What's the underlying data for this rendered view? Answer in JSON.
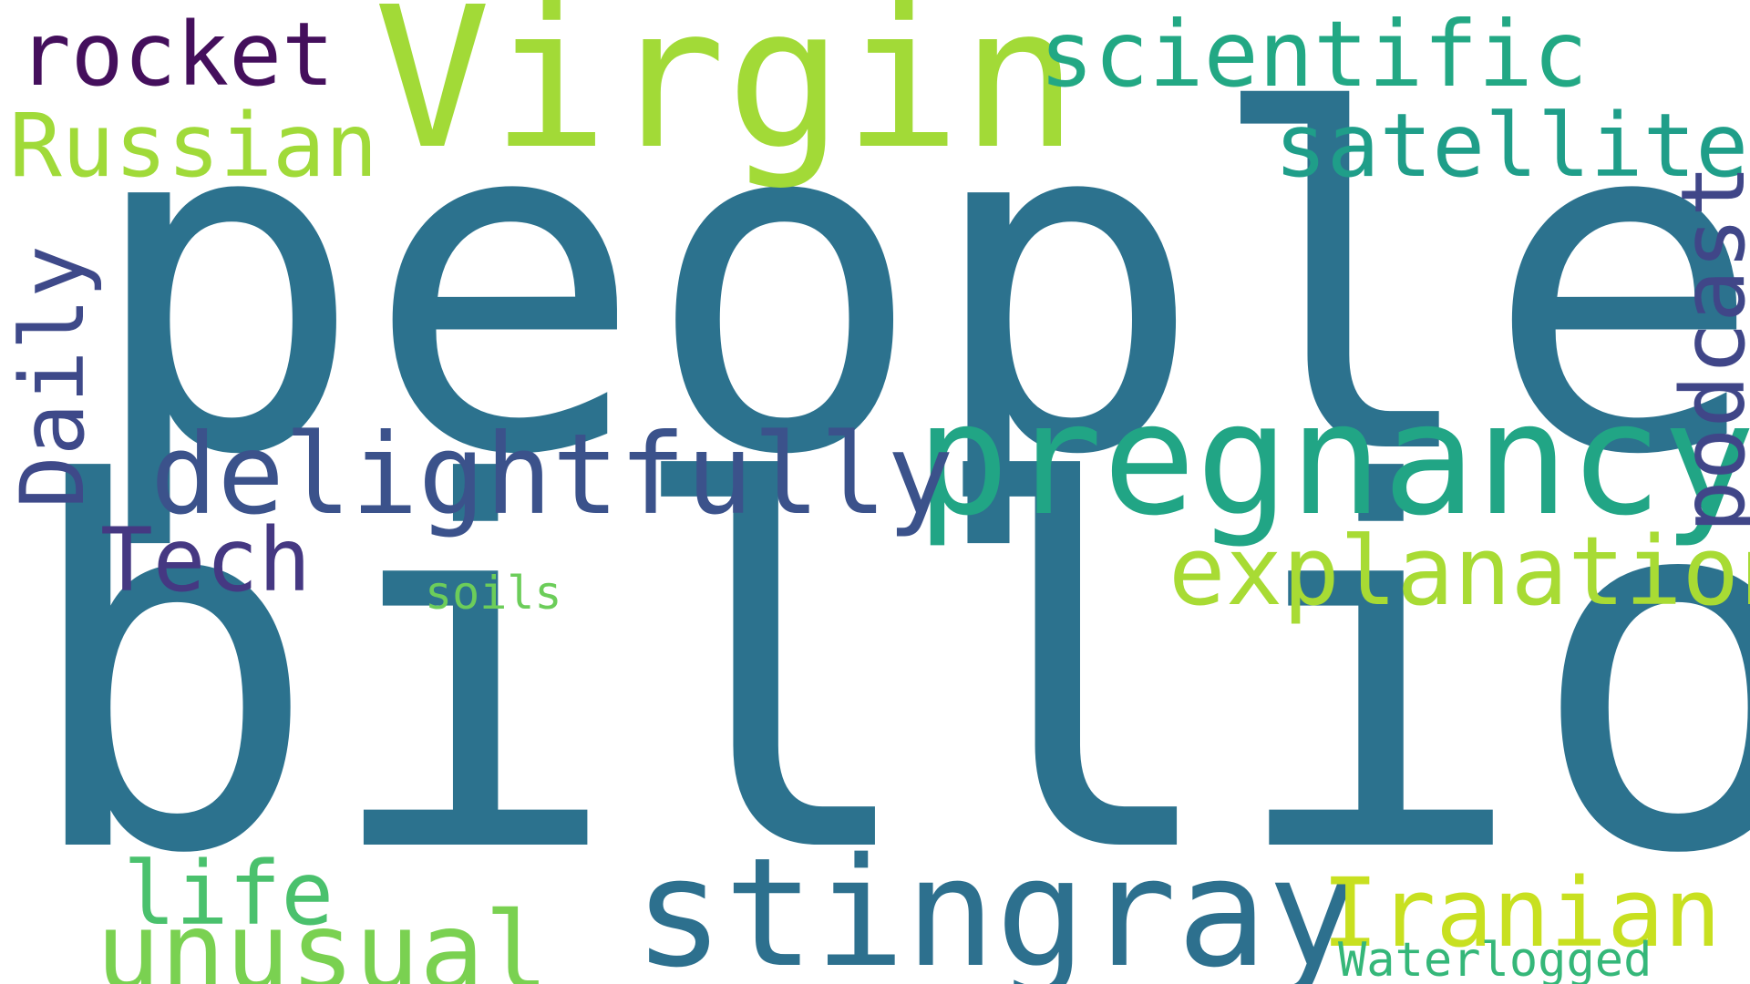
{
  "word_cloud": {
    "words": [
      {
        "id": "people",
        "text": "people",
        "color": "#2c728e",
        "orientation": "horizontal"
      },
      {
        "id": "billion",
        "text": "billion",
        "color": "#2c728e",
        "orientation": "horizontal"
      },
      {
        "id": "virgin",
        "text": "Virgin",
        "color": "#a2da37",
        "orientation": "horizontal"
      },
      {
        "id": "pregnancy",
        "text": "pregnancy",
        "color": "#21a585",
        "orientation": "horizontal"
      },
      {
        "id": "stingray",
        "text": "stingray",
        "color": "#2d708e",
        "orientation": "horizontal"
      },
      {
        "id": "delightfully",
        "text": "delightfully",
        "color": "#3b528b",
        "orientation": "horizontal"
      },
      {
        "id": "explanation",
        "text": "explanation",
        "color": "#a8db34",
        "orientation": "horizontal"
      },
      {
        "id": "scientific",
        "text": "scientific",
        "color": "#22a884",
        "orientation": "horizontal"
      },
      {
        "id": "unusual",
        "text": "unusual",
        "color": "#7ad151",
        "orientation": "horizontal"
      },
      {
        "id": "iranian",
        "text": "Iranian",
        "color": "#c8e020",
        "orientation": "horizontal"
      },
      {
        "id": "satellite",
        "text": "satellite",
        "color": "#1f9e89",
        "orientation": "horizontal"
      },
      {
        "id": "rocket",
        "text": "rocket",
        "color": "#440f5c",
        "orientation": "horizontal"
      },
      {
        "id": "russian",
        "text": "Russian",
        "color": "#a0da39",
        "orientation": "horizontal"
      },
      {
        "id": "life",
        "text": "life",
        "color": "#4ac16d",
        "orientation": "horizontal"
      },
      {
        "id": "tech",
        "text": "Tech",
        "color": "#453882",
        "orientation": "horizontal"
      },
      {
        "id": "soils",
        "text": "soils",
        "color": "#6ccd5a",
        "orientation": "horizontal"
      },
      {
        "id": "waterlogged",
        "text": "Waterlogged",
        "color": "#35b779",
        "orientation": "horizontal"
      },
      {
        "id": "daily",
        "text": "Daily",
        "color": "#3e4989",
        "orientation": "vertical"
      },
      {
        "id": "podcast",
        "text": "podcast",
        "color": "#404688",
        "orientation": "vertical"
      }
    ]
  }
}
